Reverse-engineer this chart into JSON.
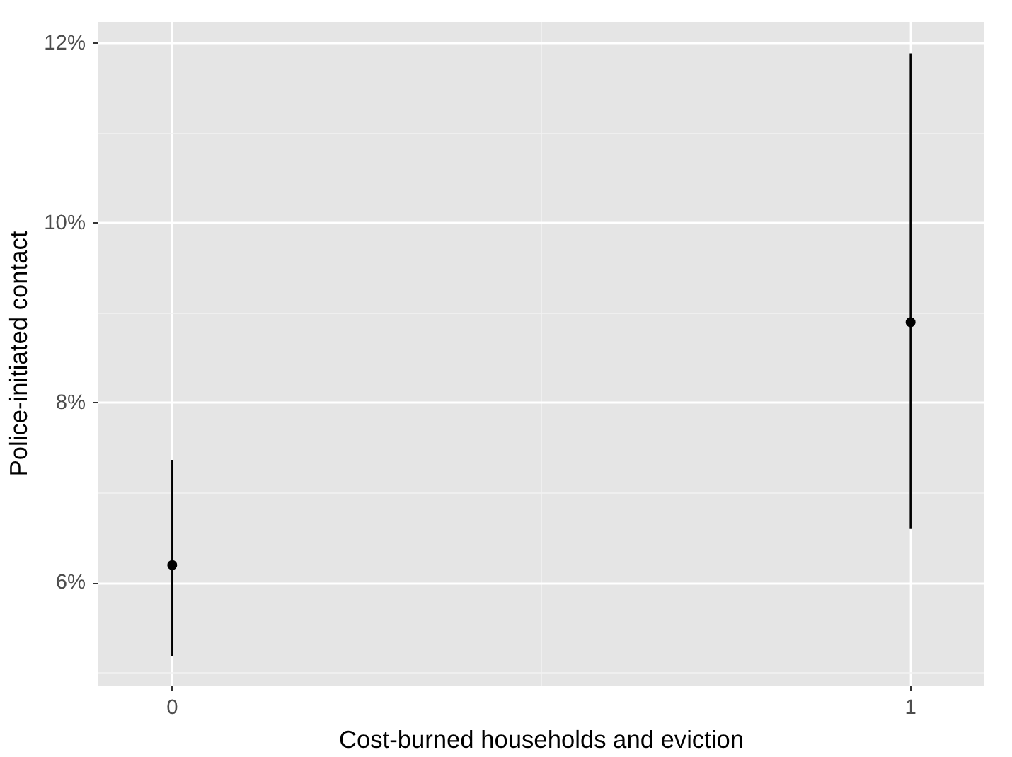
{
  "chart_data": {
    "type": "scatter",
    "xlabel": "Cost-burned households and eviction",
    "ylabel": "Police-initiated contact",
    "x": [
      0,
      1
    ],
    "values": [
      6.2,
      8.9
    ],
    "errors": [
      [
        5.19,
        7.37
      ],
      [
        6.6,
        11.89
      ]
    ],
    "color": "#000000",
    "xlim": [
      -0.1,
      1.1
    ],
    "xticks": [
      0,
      1
    ],
    "ylim": [
      4.86,
      12.24
    ],
    "yticks": [
      {
        "value": 6,
        "label": "6%"
      },
      {
        "value": 8,
        "label": "8%"
      },
      {
        "value": 10,
        "label": "10%"
      },
      {
        "value": 12,
        "label": "12%"
      }
    ],
    "grid": true,
    "marker": "circle"
  }
}
